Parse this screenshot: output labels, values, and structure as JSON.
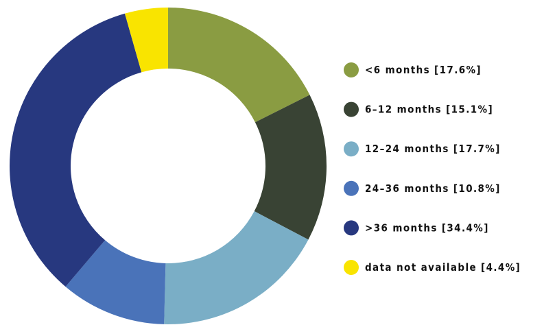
{
  "chart_data": {
    "type": "donut",
    "categories": [
      "<6 months",
      "6–12 months",
      "12–24 months",
      "24–36 months",
      ">36 months",
      "data not available"
    ],
    "values": [
      17.6,
      15.1,
      17.7,
      10.8,
      34.4,
      4.4
    ],
    "value_labels": [
      "[17.6%]",
      "[15.1%]",
      "[17.7%]",
      "[10.8%]",
      "[34.4%]",
      "[4.4%]"
    ],
    "colors": [
      "#8a9c42",
      "#394334",
      "#7aaec6",
      "#4a73b9",
      "#27387f",
      "#f9e400"
    ],
    "legend": "right"
  }
}
